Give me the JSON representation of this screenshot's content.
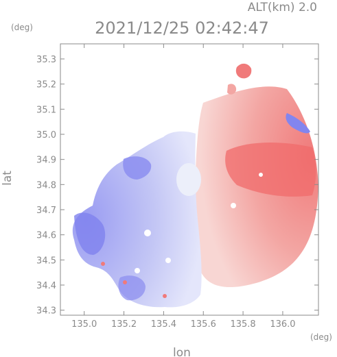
{
  "chart_data": {
    "type": "heatmap",
    "title": "2021/12/25 02:42:47",
    "subtitle": "ALT(km) 2.0",
    "xlabel": "lon",
    "ylabel": "lat",
    "x_unit": "(deg)",
    "y_unit": "(deg)",
    "xlim": [
      134.88,
      136.18
    ],
    "ylim": [
      34.28,
      35.36
    ],
    "x_ticks": [
      135.0,
      135.2,
      135.4,
      135.6,
      135.8,
      136.0
    ],
    "y_ticks": [
      34.3,
      34.4,
      34.5,
      34.6,
      34.7,
      34.8,
      34.9,
      35.0,
      35.1,
      35.2,
      35.3
    ],
    "grid": false,
    "radar_site": {
      "lon": 135.57,
      "lat": 34.8
    },
    "colors": {
      "approaching": "#7b7bf0",
      "approaching_light": "#c9ccf4",
      "receding": "#f08080",
      "receding_light": "#f6c2be",
      "axis": "#8a8a8a"
    }
  }
}
